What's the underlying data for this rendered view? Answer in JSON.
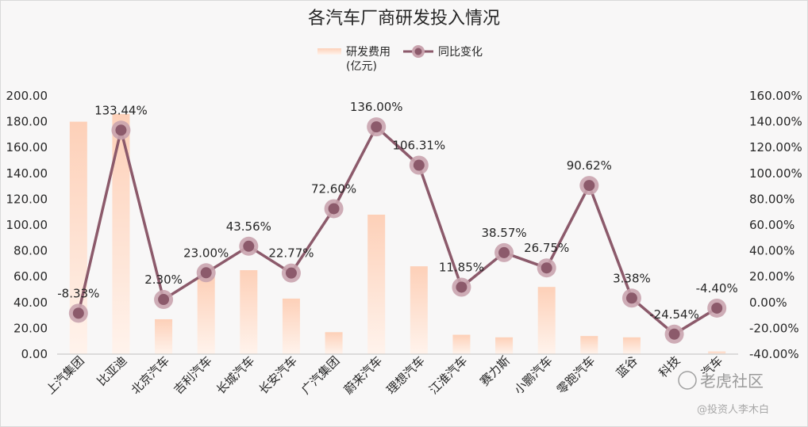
{
  "chart_data": {
    "type": "bar",
    "title": "各汽车厂商研发投入情况",
    "categories": [
      "上汽集团",
      "比亚迪",
      "北京汽车",
      "吉利汽车",
      "长城汽车",
      "长安汽车",
      "广汽集团",
      "蔚来汽车",
      "理想汽车",
      "江淮汽车",
      "赛力斯",
      "小鹏汽车",
      "零跑汽车",
      "蓝谷",
      "科技",
      "汽车"
    ],
    "series": [
      {
        "name": "研发费用(亿元)",
        "type": "bar",
        "axis": "left",
        "values": [
          180,
          186,
          27,
          60,
          65,
          43,
          17,
          108,
          68,
          15,
          13,
          52,
          14,
          13,
          0,
          2
        ]
      },
      {
        "name": "同比变化",
        "type": "line",
        "axis": "right",
        "values": [
          -8.33,
          133.44,
          2.3,
          23.0,
          43.56,
          22.77,
          72.6,
          136.0,
          106.31,
          11.85,
          38.57,
          26.75,
          90.62,
          3.38,
          -24.54,
          -4.4
        ],
        "labels": [
          "-8.33%",
          "133.44%",
          "2.30%",
          "23.00%",
          "43.56%",
          "22.77%",
          "72.60%",
          "136.00%",
          "106.31%",
          "11.85%",
          "38.57%",
          "26.75%",
          "90.62%",
          "3.38%",
          "-24.54%",
          "-4.40%"
        ]
      }
    ],
    "legend": {
      "bar_label_1": "研发费用",
      "bar_label_2": "(亿元)",
      "line_label": "同比变化",
      "position": "top"
    },
    "left_axis": {
      "range": [
        0,
        200
      ],
      "ticks": [
        "0.00",
        "20.00",
        "40.00",
        "60.00",
        "80.00",
        "100.00",
        "120.00",
        "140.00",
        "160.00",
        "180.00",
        "200.00"
      ]
    },
    "right_axis": {
      "range": [
        -40,
        160
      ],
      "ticks": [
        "-40.00%",
        "-20.00%",
        "0.00%",
        "20.00%",
        "40.00%",
        "60.00%",
        "80.00%",
        "100.00%",
        "120.00%",
        "140.00%",
        "160.00%"
      ]
    },
    "grid": false,
    "colors": {
      "bar_top": "#fdd0b8",
      "bar_bottom": "#fff3ec",
      "line": "#8c5a6b",
      "marker": "#8c5a6b",
      "marker_halo": "#c9a3ae"
    }
  },
  "watermark": {
    "main": "老虎社区",
    "sub": "@投资人李木白"
  }
}
